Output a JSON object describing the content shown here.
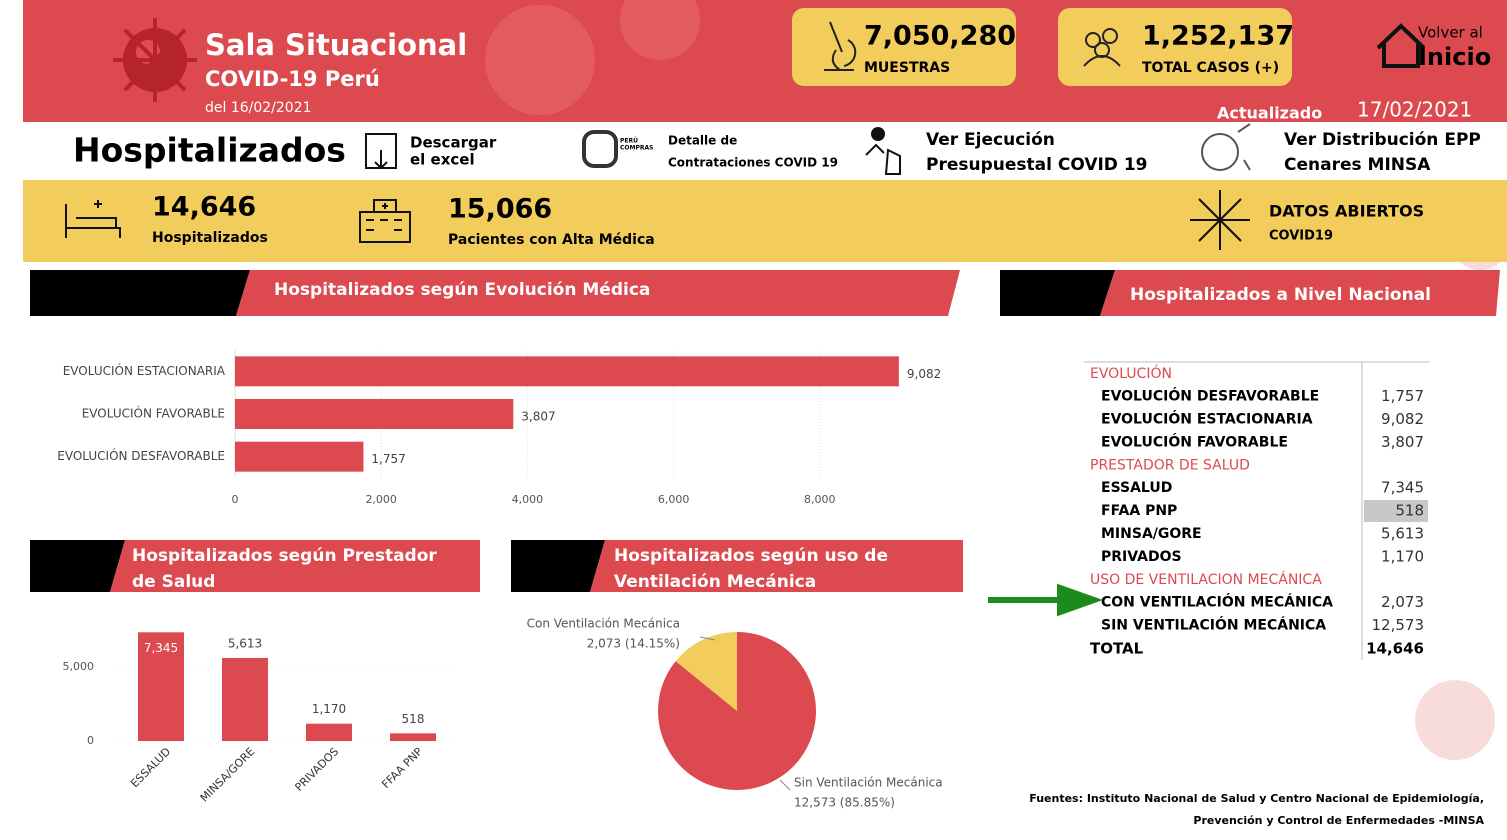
{
  "header": {
    "title": "Sala Situacional",
    "subtitle": "COVID-19 Perú",
    "date": "del 16/02/2021",
    "updated_label": "Actualizado",
    "updated_date": "17/02/2021",
    "home_top": "Volver al",
    "home_bottom": "Inicio"
  },
  "top_kpis": [
    {
      "value": "7,050,280",
      "label": "MUESTRAS"
    },
    {
      "value": "1,252,137",
      "label": "TOTAL CASOS (+)"
    }
  ],
  "section_title": "Hospitalizados",
  "links": [
    {
      "lines": [
        "Descargar",
        "el excel"
      ]
    },
    {
      "logo": [
        "PERÚ",
        "COMPRAS"
      ],
      "lines": [
        "Detalle  de",
        "Contrataciones COVID 19"
      ]
    },
    {
      "lines": [
        "Ver Ejecución",
        "Presupuestal COVID 19"
      ]
    },
    {
      "lines": [
        "Ver Distribución EPP",
        "Cenares MINSA"
      ]
    }
  ],
  "kpis": [
    {
      "value": "14,646",
      "label": "Hospitalizados"
    },
    {
      "value": "15,066",
      "label": "Pacientes con Alta Médica"
    }
  ],
  "open_data": {
    "title": "DATOS ABIERTOS",
    "subtitle": "COVID19"
  },
  "chart_data": [
    {
      "type": "hbar",
      "title": "Hospitalizados según Evolución Médica",
      "categories": [
        "EVOLUCIÓN ESTACIONARIA",
        "EVOLUCIÓN FAVORABLE",
        "EVOLUCIÓN DESFAVORABLE"
      ],
      "values": [
        9082,
        3807,
        1757
      ],
      "value_labels": [
        "9,082",
        "3,807",
        "1,757"
      ],
      "color": "#dc4a4f",
      "xlim": [
        0,
        10000
      ],
      "xticks": [
        0,
        {
          "value": 2000,
          "label": "2,000"
        },
        {
          "value": 4000,
          "label": "4,000"
        },
        {
          "value": 6000,
          "label": "6,000"
        },
        {
          "value": 8000,
          "label": "8,000"
        }
      ]
    },
    {
      "type": "bar",
      "title": "Hospitalizados según Prestador de Salud",
      "categories": [
        "ESSALUD",
        "MINSA/GORE",
        "PRIVADOS",
        "FFAA PNP"
      ],
      "values": [
        7345,
        5613,
        1170,
        518
      ],
      "value_labels": [
        "7,345",
        "5,613",
        "1,170",
        "518"
      ],
      "color": "#dc4a4f",
      "ylim": [
        0,
        8000
      ],
      "yticks": [
        0,
        {
          "value": 5000,
          "label": "5,000"
        }
      ]
    },
    {
      "type": "pie",
      "title": "Hospitalizados según uso de Ventilación Mecánica",
      "categories": [
        "Con Ventilación Mecánica",
        "Sin Ventilación Mecánica"
      ],
      "values": [
        2073,
        12573
      ],
      "value_labels": [
        "2,073 (14.15%)",
        "12,573 (85.85%)"
      ],
      "colors": [
        "#f2cd5c",
        "#dc4a4f"
      ]
    }
  ],
  "table": {
    "title": "Hospitalizados a Nivel Nacional",
    "groups": [
      {
        "name": "EVOLUCIÓN",
        "rows": [
          [
            "EVOLUCIÓN DESFAVORABLE",
            "1,757"
          ],
          [
            "EVOLUCIÓN ESTACIONARIA",
            "9,082"
          ],
          [
            "EVOLUCIÓN FAVORABLE",
            "3,807"
          ]
        ]
      },
      {
        "name": "PRESTADOR DE SALUD",
        "rows": [
          [
            "ESSALUD",
            "7,345"
          ],
          [
            "FFAA PNP",
            "518"
          ],
          [
            "MINSA/GORE",
            "5,613"
          ],
          [
            "PRIVADOS",
            "1,170"
          ]
        ]
      },
      {
        "name": "USO DE VENTILACION MECÁNICA",
        "rows": [
          [
            "CON VENTILACIÓN MECÁNICA",
            "2,073"
          ],
          [
            "SIN VENTILACIÓN MECÁNICA",
            "12,573"
          ]
        ]
      }
    ],
    "total": [
      "TOTAL",
      "14,646"
    ]
  },
  "footer": {
    "lines": [
      "Fuentes: Instituto Nacional de Salud y Centro Nacional de Epidemiología,",
      "Prevención y Control de Enfermedades -MINSA"
    ]
  }
}
